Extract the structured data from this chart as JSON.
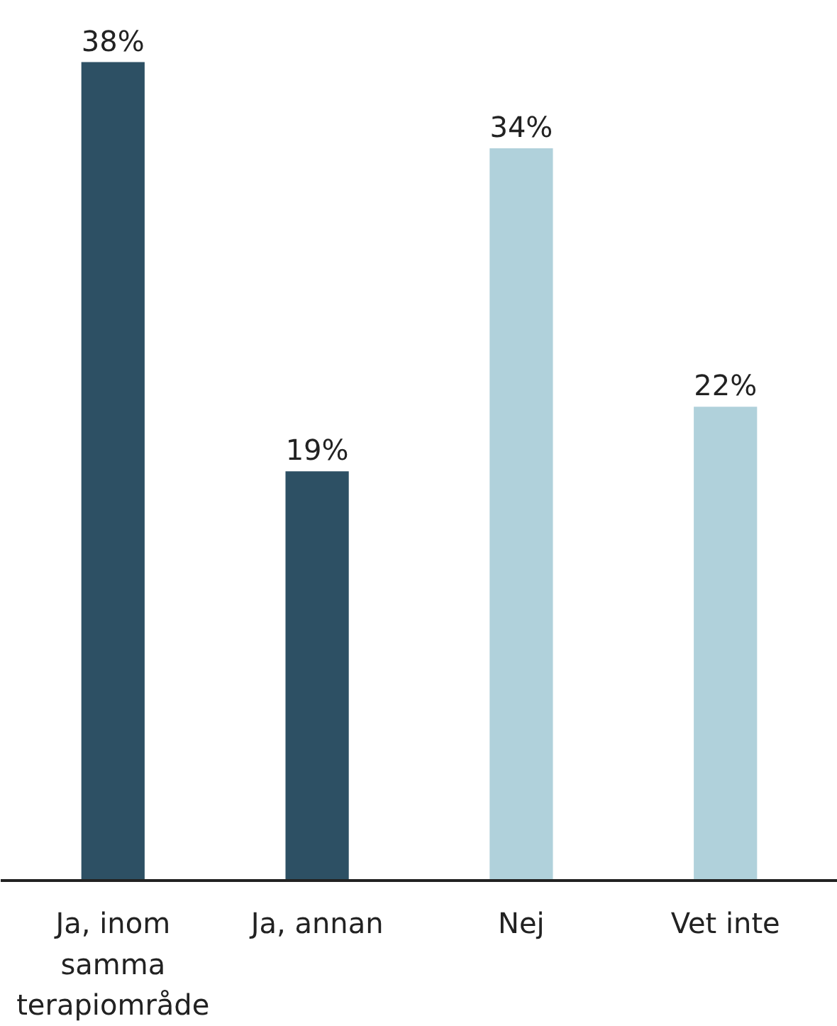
{
  "chart_data": {
    "type": "bar",
    "categories": [
      "Ja, inom samma terapiområde",
      "Ja, annan",
      "Nej",
      "Vet inte"
    ],
    "values": [
      38,
      19,
      34,
      22
    ],
    "colors": [
      "#2d5064",
      "#2d5064",
      "#b0d1db",
      "#b0d1db"
    ],
    "value_labels": [
      "38%",
      "19%",
      "34%",
      "22%"
    ],
    "grid": false
  }
}
